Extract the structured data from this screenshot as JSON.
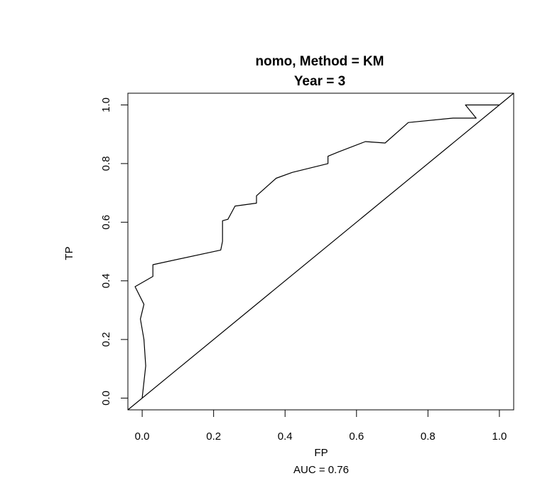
{
  "chart_data": {
    "type": "line",
    "title": "nomo, Method = KM",
    "subtitle": "Year = 3",
    "xlabel": "FP",
    "ylabel": "TP",
    "xlim": [
      -0.04,
      1.04
    ],
    "ylim": [
      -0.04,
      1.04
    ],
    "x_ticks": [
      0.0,
      0.2,
      0.4,
      0.6,
      0.8,
      1.0
    ],
    "x_tick_labels": [
      "0.0",
      "0.2",
      "0.4",
      "0.6",
      "0.8",
      "1.0"
    ],
    "y_ticks": [
      0.0,
      0.2,
      0.4,
      0.6,
      0.8,
      1.0
    ],
    "y_tick_labels": [
      "0.0",
      "0.2",
      "0.4",
      "0.6",
      "0.8",
      "1.0"
    ],
    "annotation": "AUC =  0.76",
    "grid": false,
    "series": [
      {
        "name": "ROC",
        "x": [
          0.0,
          0.01,
          0.005,
          -0.005,
          0.005,
          -0.02,
          0.03,
          0.03,
          0.22,
          0.225,
          0.225,
          0.24,
          0.26,
          0.32,
          0.32,
          0.375,
          0.42,
          0.52,
          0.52,
          0.55,
          0.625,
          0.68,
          0.745,
          0.87,
          0.935,
          0.905,
          0.935,
          1.0
        ],
        "y": [
          0.0,
          0.11,
          0.2,
          0.27,
          0.32,
          0.38,
          0.415,
          0.455,
          0.505,
          0.535,
          0.605,
          0.61,
          0.655,
          0.665,
          0.69,
          0.75,
          0.77,
          0.8,
          0.825,
          0.84,
          0.875,
          0.87,
          0.94,
          0.955,
          0.955,
          1.0,
          1.0,
          1.0
        ]
      },
      {
        "name": "diagonal",
        "x": [
          -0.04,
          1.04
        ],
        "y": [
          -0.04,
          1.04
        ]
      }
    ]
  }
}
